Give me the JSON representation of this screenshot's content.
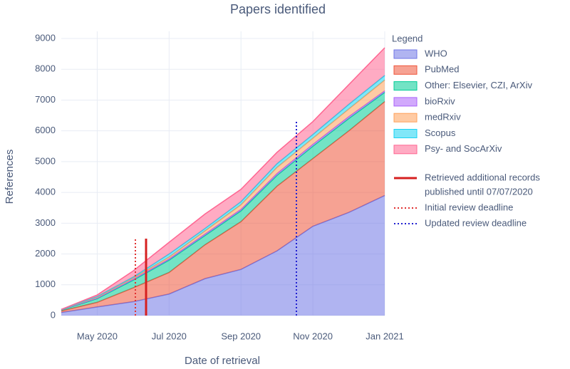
{
  "chart_data": {
    "type": "area",
    "title": "Papers identified",
    "x_label": "Date of retrieval",
    "y_label": "References",
    "legend_title": "Legend",
    "x": [
      "2020-04",
      "2020-05",
      "2020-06",
      "2020-07",
      "2020-08",
      "2020-09",
      "2020-10",
      "2020-11",
      "2020-12",
      "2021-01"
    ],
    "xlim": [
      "2020-04",
      "2021-01"
    ],
    "xticks": [
      {
        "value": "2020-05",
        "label": "May 2020"
      },
      {
        "value": "2020-07",
        "label": "Jul 2020"
      },
      {
        "value": "2020-09",
        "label": "Sep 2020"
      },
      {
        "value": "2020-11",
        "label": "Nov 2020"
      },
      {
        "value": "2021-01",
        "label": "Jan 2021"
      }
    ],
    "ylim": [
      0,
      9000
    ],
    "yticks": [
      0,
      1000,
      2000,
      3000,
      4000,
      5000,
      6000,
      7000,
      8000,
      9000
    ],
    "grid": true,
    "stacked": true,
    "series": [
      {
        "name": "WHO",
        "color": "#6f76e6",
        "values": [
          100,
          280,
          450,
          700,
          1200,
          1500,
          2100,
          2900,
          3350,
          3900
        ]
      },
      {
        "name": "PubMed",
        "color": "#ef553b",
        "values": [
          50,
          150,
          450,
          700,
          1100,
          1550,
          2100,
          2200,
          2650,
          3050
        ]
      },
      {
        "name": "Other: Elsevier, CZI, ArXiv",
        "color": "#00cc96",
        "values": [
          30,
          120,
          250,
          400,
          300,
          350,
          350,
          400,
          400,
          300
        ]
      },
      {
        "name": "bioRxiv",
        "color": "#ab63fa",
        "values": [
          10,
          20,
          30,
          40,
          50,
          50,
          60,
          60,
          60,
          50
        ]
      },
      {
        "name": "medRxiv",
        "color": "#ffa15a",
        "values": [
          10,
          30,
          40,
          60,
          100,
          150,
          200,
          200,
          250,
          350
        ]
      },
      {
        "name": "Scopus",
        "color": "#19d3f3",
        "values": [
          0,
          20,
          30,
          100,
          80,
          100,
          120,
          120,
          150,
          150
        ]
      },
      {
        "name": "Psy- and SocArXiv",
        "color": "#ff6692",
        "values": [
          0,
          50,
          200,
          380,
          470,
          400,
          370,
          420,
          640,
          900
        ]
      }
    ],
    "markers": [
      {
        "name": [
          "Retrieved additional records",
          "published until 07/07/2020"
        ],
        "color": "#d62020",
        "dash": "solid"
      },
      {
        "name": [
          "Initial review deadline"
        ],
        "color": "#e03030",
        "dash": "dot"
      },
      {
        "name": [
          "Updated review deadline"
        ],
        "color": "#2020d0",
        "dash": "dot"
      }
    ]
  }
}
